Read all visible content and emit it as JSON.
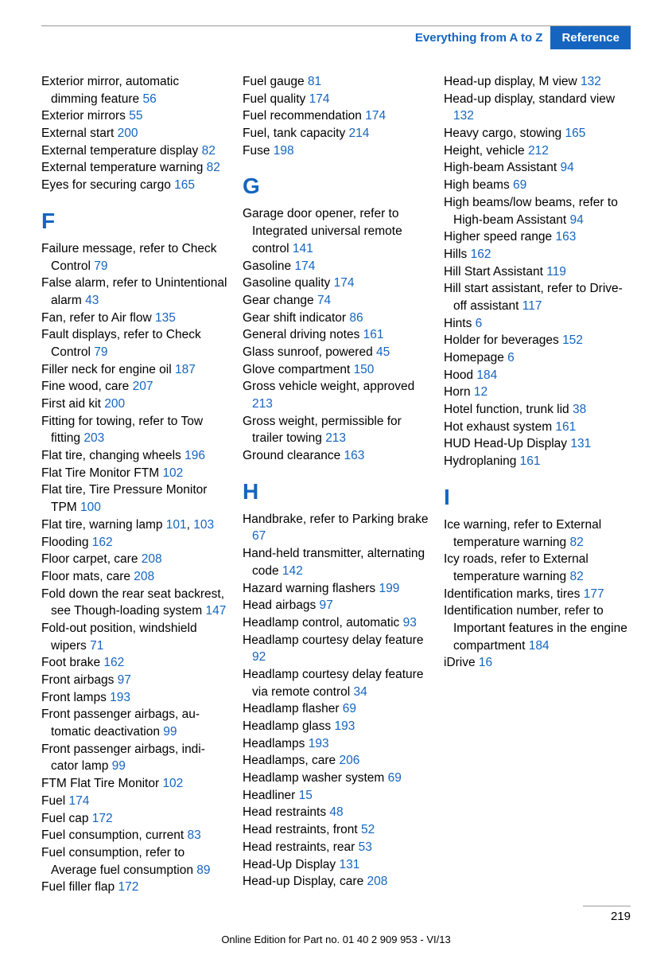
{
  "header": {
    "section": "Everything from A to Z",
    "ref": "Reference"
  },
  "page_number": "219",
  "footer": "Online Edition for Part no. 01 40 2 909 953 - VI/13",
  "colors": {
    "link": "#1565c0",
    "text": "#000000",
    "bg": "#ffffff"
  },
  "entries": [
    {
      "t": "entry",
      "text": "Exterior mirror, automatic dimming feature ",
      "pg": "56"
    },
    {
      "t": "entry",
      "text": "Exterior mirrors ",
      "pg": "55"
    },
    {
      "t": "entry",
      "text": "External start ",
      "pg": "200"
    },
    {
      "t": "entry",
      "text": "External temperature dis­play ",
      "pg": "82"
    },
    {
      "t": "entry",
      "text": "External temperature warn­ing ",
      "pg": "82"
    },
    {
      "t": "entry",
      "text": "Eyes for securing cargo ",
      "pg": "165"
    },
    {
      "t": "letter",
      "text": "F"
    },
    {
      "t": "entry",
      "text": "Failure message, refer to Check Control ",
      "pg": "79"
    },
    {
      "t": "entry",
      "text": "False alarm, refer to Uninten­tional alarm ",
      "pg": "43"
    },
    {
      "t": "entry",
      "text": "Fan, refer to Air flow ",
      "pg": "135"
    },
    {
      "t": "entry",
      "text": "Fault displays, refer to Check Control ",
      "pg": "79"
    },
    {
      "t": "entry",
      "text": "Filler neck for engine oil ",
      "pg": "187"
    },
    {
      "t": "entry",
      "text": "Fine wood, care ",
      "pg": "207"
    },
    {
      "t": "entry",
      "text": "First aid kit ",
      "pg": "200"
    },
    {
      "t": "entry",
      "text": "Fitting for towing, refer to Tow fitting ",
      "pg": "203"
    },
    {
      "t": "entry",
      "text": "Flat tire, changing wheels ",
      "pg": "196"
    },
    {
      "t": "entry",
      "text": "Flat Tire Monitor FTM ",
      "pg": "102"
    },
    {
      "t": "entry",
      "text": "Flat tire, Tire Pressure Moni­tor TPM ",
      "pg": "100"
    },
    {
      "t": "entry2",
      "text": "Flat tire, warning lamp ",
      "pg": "101",
      "pg2": "103"
    },
    {
      "t": "entry",
      "text": "Flooding ",
      "pg": "162"
    },
    {
      "t": "entry",
      "text": "Floor carpet, care ",
      "pg": "208"
    },
    {
      "t": "entry",
      "text": "Floor mats, care ",
      "pg": "208"
    },
    {
      "t": "entry",
      "text": "Fold down the rear seat back­rest, see Though-loading system ",
      "pg": "147"
    },
    {
      "t": "entry",
      "text": "Fold-out position, windshield wipers ",
      "pg": "71"
    },
    {
      "t": "entry",
      "text": "Foot brake ",
      "pg": "162"
    },
    {
      "t": "entry",
      "text": "Front airbags ",
      "pg": "97"
    },
    {
      "t": "entry",
      "text": "Front lamps ",
      "pg": "193"
    },
    {
      "t": "entry",
      "text": "Front passenger airbags, au­tomatic deactivation ",
      "pg": "99"
    },
    {
      "t": "entry",
      "text": "Front passenger airbags, indi­cator lamp ",
      "pg": "99"
    },
    {
      "t": "entry",
      "text": "FTM Flat Tire Monitor ",
      "pg": "102"
    },
    {
      "t": "entry",
      "text": "Fuel ",
      "pg": "174"
    },
    {
      "t": "entry",
      "text": "Fuel cap ",
      "pg": "172"
    },
    {
      "t": "entry",
      "text": "Fuel consumption, current ",
      "pg": "83"
    },
    {
      "t": "entry",
      "text": "Fuel consumption, refer to Average fuel consump­tion ",
      "pg": "89"
    },
    {
      "t": "entry",
      "text": "Fuel filler flap ",
      "pg": "172"
    },
    {
      "t": "entry",
      "text": "Fuel gauge ",
      "pg": "81"
    },
    {
      "t": "entry",
      "text": "Fuel quality ",
      "pg": "174"
    },
    {
      "t": "entry",
      "text": "Fuel recommendation ",
      "pg": "174"
    },
    {
      "t": "entry",
      "text": "Fuel, tank capacity ",
      "pg": "214"
    },
    {
      "t": "entry",
      "text": "Fuse ",
      "pg": "198"
    },
    {
      "t": "letter",
      "text": "G"
    },
    {
      "t": "entry",
      "text": "Garage door opener, refer to Integrated universal remote control ",
      "pg": "141"
    },
    {
      "t": "entry",
      "text": "Gasoline ",
      "pg": "174"
    },
    {
      "t": "entry",
      "text": "Gasoline quality ",
      "pg": "174"
    },
    {
      "t": "entry",
      "text": "Gear change ",
      "pg": "74"
    },
    {
      "t": "entry",
      "text": "Gear shift indicator ",
      "pg": "86"
    },
    {
      "t": "entry",
      "text": "General driving notes ",
      "pg": "161"
    },
    {
      "t": "entry",
      "text": "Glass sunroof, powered ",
      "pg": "45"
    },
    {
      "t": "entry",
      "text": "Glove compartment ",
      "pg": "150"
    },
    {
      "t": "entry",
      "text": "Gross vehicle weight, ap­proved ",
      "pg": "213"
    },
    {
      "t": "entry",
      "text": "Gross weight, permissible for trailer towing ",
      "pg": "213"
    },
    {
      "t": "entry",
      "text": "Ground clearance ",
      "pg": "163"
    },
    {
      "t": "letter",
      "text": "H"
    },
    {
      "t": "entry",
      "text": "Handbrake, refer to Parking brake ",
      "pg": "67"
    },
    {
      "t": "entry",
      "text": "Hand-held transmitter, alter­nating code ",
      "pg": "142"
    },
    {
      "t": "entry",
      "text": "Hazard warning flashers ",
      "pg": "199"
    },
    {
      "t": "entry",
      "text": "Head airbags ",
      "pg": "97"
    },
    {
      "t": "entry",
      "text": "Headlamp control, auto­matic ",
      "pg": "93"
    },
    {
      "t": "entry",
      "text": "Headlamp courtesy delay fea­ture ",
      "pg": "92"
    },
    {
      "t": "entry",
      "text": "Headlamp courtesy delay fea­ture via remote control ",
      "pg": "34"
    },
    {
      "t": "entry",
      "text": "Headlamp flasher ",
      "pg": "69"
    },
    {
      "t": "entry",
      "text": "Headlamp glass ",
      "pg": "193"
    },
    {
      "t": "entry",
      "text": "Headlamps ",
      "pg": "193"
    },
    {
      "t": "entry",
      "text": "Headlamps, care ",
      "pg": "206"
    },
    {
      "t": "entry",
      "text": "Headlamp washer system ",
      "pg": "69"
    },
    {
      "t": "entry",
      "text": "Headliner ",
      "pg": "15"
    },
    {
      "t": "entry",
      "text": "Head restraints ",
      "pg": "48"
    },
    {
      "t": "entry",
      "text": "Head restraints, front ",
      "pg": "52"
    },
    {
      "t": "entry",
      "text": "Head restraints, rear ",
      "pg": "53"
    },
    {
      "t": "entry",
      "text": "Head-Up Display ",
      "pg": "131"
    },
    {
      "t": "entry",
      "text": "Head-up Display, care ",
      "pg": "208"
    },
    {
      "t": "entry",
      "text": "Head-up display, M view ",
      "pg": "132"
    },
    {
      "t": "entry",
      "text": "Head-up display, standard view ",
      "pg": "132"
    },
    {
      "t": "entry",
      "text": "Heavy cargo, stowing ",
      "pg": "165"
    },
    {
      "t": "entry",
      "text": "Height, vehicle ",
      "pg": "212"
    },
    {
      "t": "entry",
      "text": "High-beam Assistant ",
      "pg": "94"
    },
    {
      "t": "entry",
      "text": "High beams ",
      "pg": "69"
    },
    {
      "t": "entry",
      "text": "High beams/low beams, refer to High-beam Assistant ",
      "pg": "94"
    },
    {
      "t": "entry",
      "text": "Higher speed range ",
      "pg": "163"
    },
    {
      "t": "entry",
      "text": "Hills ",
      "pg": "162"
    },
    {
      "t": "entry",
      "text": "Hill Start Assistant ",
      "pg": "119"
    },
    {
      "t": "entry",
      "text": "Hill start assistant, refer to Drive-off assistant ",
      "pg": "117"
    },
    {
      "t": "entry",
      "text": "Hints ",
      "pg": "6"
    },
    {
      "t": "entry",
      "text": "Holder for beverages ",
      "pg": "152"
    },
    {
      "t": "entry",
      "text": "Homepage ",
      "pg": "6"
    },
    {
      "t": "entry",
      "text": "Hood ",
      "pg": "184"
    },
    {
      "t": "entry",
      "text": "Horn ",
      "pg": "12"
    },
    {
      "t": "entry",
      "text": "Hotel function, trunk lid ",
      "pg": "38"
    },
    {
      "t": "entry",
      "text": "Hot exhaust system ",
      "pg": "161"
    },
    {
      "t": "entry",
      "text": "HUD Head-Up Display ",
      "pg": "131"
    },
    {
      "t": "entry",
      "text": "Hydroplaning ",
      "pg": "161"
    },
    {
      "t": "letter",
      "text": "I"
    },
    {
      "t": "entry",
      "text": "Ice warning, refer to External temperature warning ",
      "pg": "82"
    },
    {
      "t": "entry",
      "text": "Icy roads, refer to External temperature warning ",
      "pg": "82"
    },
    {
      "t": "entry",
      "text": "Identification marks, tires ",
      "pg": "177"
    },
    {
      "t": "entry",
      "text": "Identification number, refer to Important features in the en­gine compartment ",
      "pg": "184"
    },
    {
      "t": "entry",
      "text": "iDrive ",
      "pg": "16"
    }
  ]
}
